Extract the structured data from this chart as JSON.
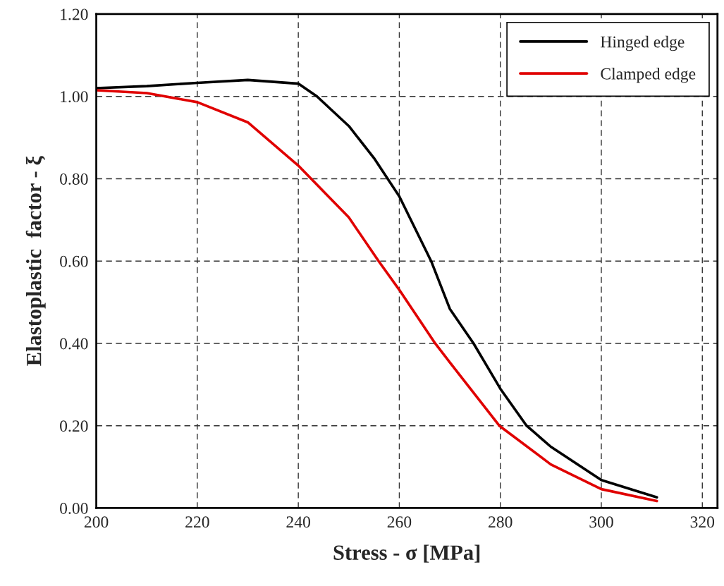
{
  "chart_data": {
    "type": "line",
    "xlabel": "Stress - σ [MPa]",
    "ylabel": "Elastoplastic  factor - ξ",
    "xlim": [
      200,
      323
    ],
    "xticks": [
      200,
      220,
      240,
      260,
      280,
      300,
      320
    ],
    "ylim": [
      0,
      1.2
    ],
    "yticks": [
      {
        "value": 0,
        "label": "0.00"
      },
      {
        "value": 0.2,
        "label": "0.20"
      },
      {
        "value": 0.4,
        "label": "0.40"
      },
      {
        "value": 0.6,
        "label": "0.60"
      },
      {
        "value": 0.8,
        "label": "0.80"
      },
      {
        "value": 1.0,
        "label": "1.00"
      },
      {
        "value": 1.2,
        "label": "1.20"
      }
    ],
    "grid": true,
    "legend": "top right",
    "marker": "none",
    "line_style": "solid",
    "series": [
      {
        "name": "Hinged edge",
        "color": "#000000",
        "x": [
          200,
          210,
          220,
          230,
          240,
          243.7,
          250,
          255,
          260,
          266.3,
          270,
          274.7,
          280,
          285.2,
          290,
          300,
          311
        ],
        "values": [
          1.02,
          1.025,
          1.033,
          1.04,
          1.031,
          1.0,
          0.928,
          0.85,
          0.757,
          0.6,
          0.484,
          0.4,
          0.29,
          0.2,
          0.149,
          0.068,
          0.026
        ]
      },
      {
        "name": "Clamped edge",
        "color": "#e00000",
        "x": [
          200,
          210,
          220,
          230,
          240,
          250,
          255.9,
          260,
          267.1,
          270,
          279.8,
          290,
          300,
          311
        ],
        "values": [
          1.015,
          1.008,
          0.986,
          0.937,
          0.832,
          0.706,
          0.6,
          0.53,
          0.4,
          0.354,
          0.2,
          0.106,
          0.046,
          0.017
        ]
      }
    ]
  }
}
